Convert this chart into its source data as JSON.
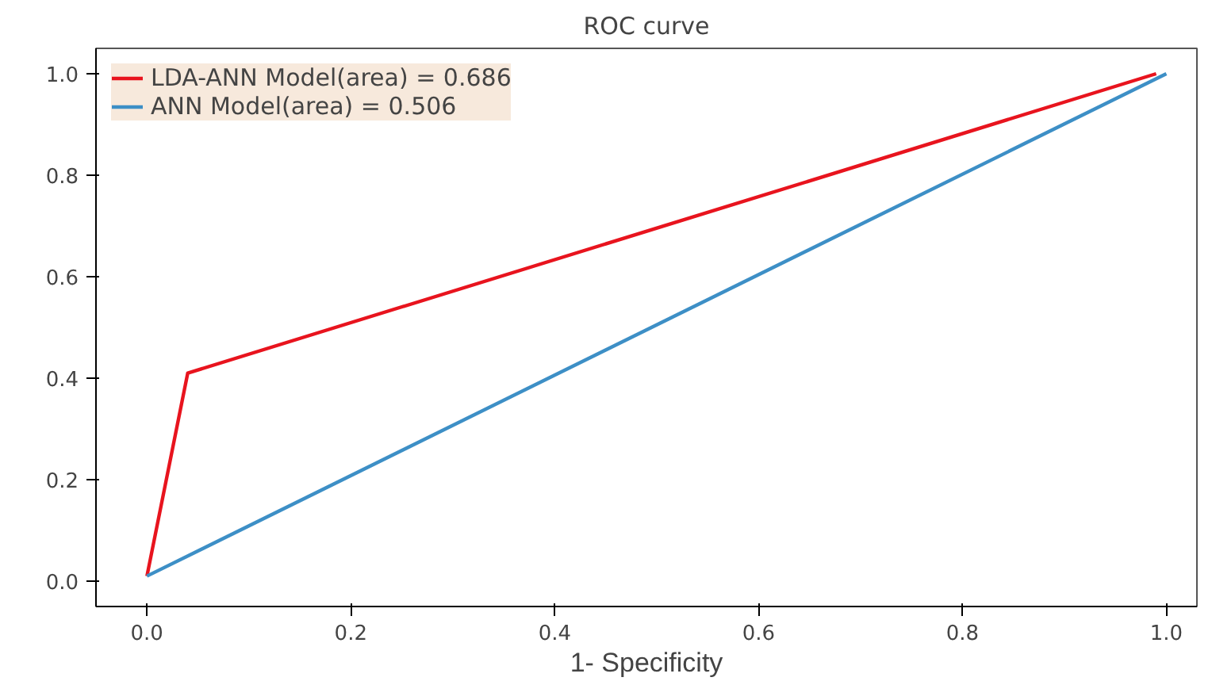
{
  "chart_data": {
    "type": "line",
    "title": "ROC curve",
    "xlabel": "1- Specificity",
    "series": [
      {
        "name": "LDA-ANN Model(area) = 0.686",
        "color": "#e8141e",
        "x": [
          0,
          0.04,
          0.99
        ],
        "values": [
          0.01,
          0.41,
          1.0
        ]
      },
      {
        "name": "ANN Model(area) = 0.506",
        "color": "#3d8fc6",
        "x": [
          0,
          1.0
        ],
        "values": [
          0.01,
          1.0
        ]
      }
    ],
    "xlim": [
      -0.05,
      1.03
    ],
    "ylim": [
      -0.05,
      1.05
    ],
    "xticks": [
      {
        "value": 0,
        "label": "0.0"
      },
      0.2,
      0.4,
      0.6,
      0.8,
      {
        "value": 1,
        "label": "1.0"
      }
    ],
    "yticks": [
      {
        "value": 0,
        "label": "0.0"
      },
      0.2,
      0.4,
      0.6,
      0.8,
      {
        "value": 1,
        "label": "1.0"
      }
    ],
    "grid": false,
    "legend": "top left",
    "line_style": "solid"
  }
}
